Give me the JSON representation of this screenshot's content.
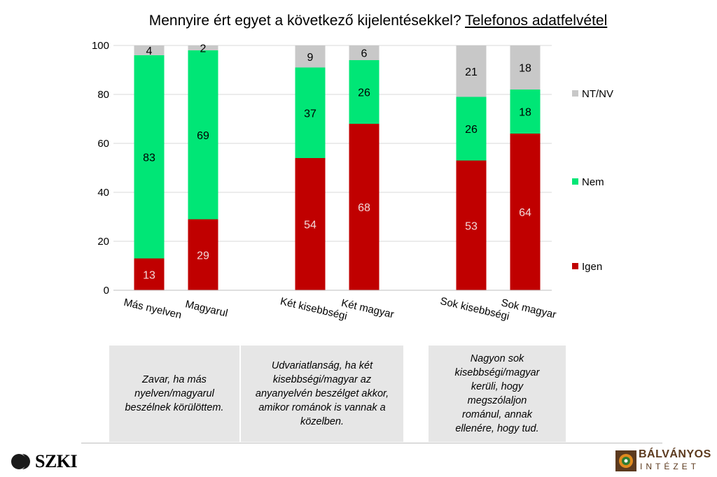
{
  "title": {
    "main": "Mennyire ért egyet a következő kijelentésekkel?",
    "emphasis": "Telefonos adatfelvétel"
  },
  "chart_data": {
    "type": "bar",
    "stacked": true,
    "categories": [
      "Más nyelven",
      "Magyarul",
      "Két kisebbségi",
      "Két magyar",
      "Sok kisebbségi",
      "Sok magyar"
    ],
    "series": [
      {
        "name": "Igen",
        "color": "#c00000",
        "values": [
          13,
          29,
          54,
          68,
          53,
          64
        ]
      },
      {
        "name": "Nem",
        "color": "#00e676",
        "values": [
          83,
          69,
          37,
          26,
          26,
          18
        ]
      },
      {
        "name": "NT/NV",
        "color": "#c8c8c8",
        "values": [
          4,
          2,
          9,
          6,
          21,
          18
        ]
      }
    ],
    "ylim": [
      0,
      100
    ],
    "yticks": [
      0,
      20,
      40,
      60,
      80,
      100
    ],
    "legend": "right",
    "grid": true
  },
  "notes": [
    "Zavar, ha más\nnyelven/magyarul\nbeszélnek körülöttem.",
    "Udvariatlanság, ha két\nkisebbségi/magyar az\nanyanyelvén beszélget akkor,\namikor románok is vannak a\nközelben.",
    "Nagyon sok\nkisebbségi/magyar\nkerüli, hogy\nmegszólaljon\nrománul, annak\nellenére, hogy tud."
  ],
  "logos": {
    "left": "SZKI",
    "right_name": "BÁLVÁNYOS",
    "right_sub": "INTÉZET"
  }
}
